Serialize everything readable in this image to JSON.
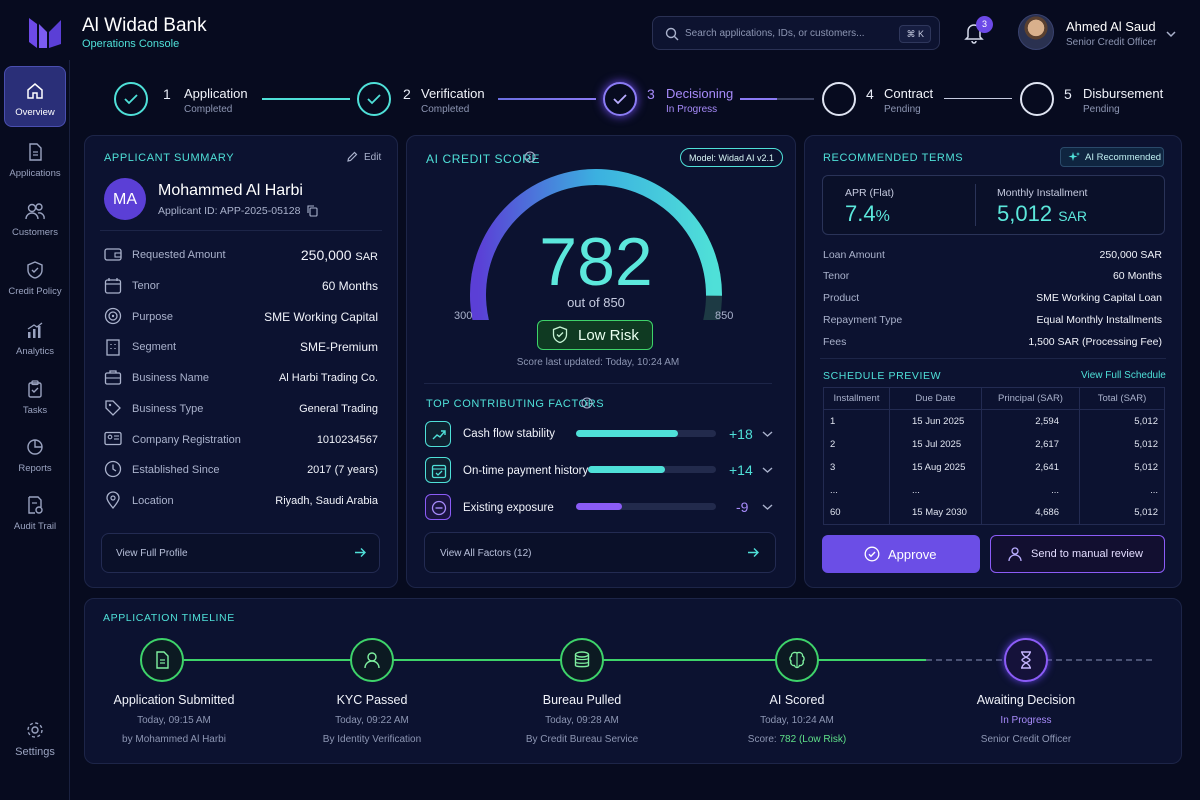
{
  "brand": {
    "name": "Al Widad Bank",
    "subtitle": "Operations Console"
  },
  "search": {
    "placeholder": "Search applications, IDs, or customers...",
    "shortcut": "⌘ K"
  },
  "notifications": {
    "count": "3"
  },
  "user": {
    "name": "Ahmed Al Saud",
    "role": "Senior Credit Officer"
  },
  "sidebar": {
    "items": [
      {
        "label": "Overview",
        "icon": "home-icon"
      },
      {
        "label": "Applications",
        "icon": "document-icon"
      },
      {
        "label": "Customers",
        "icon": "users-icon"
      },
      {
        "label": "Credit Policy",
        "icon": "shield-icon"
      },
      {
        "label": "Analytics",
        "icon": "chart-icon"
      },
      {
        "label": "Tasks",
        "icon": "clipboard-icon"
      },
      {
        "label": "Reports",
        "icon": "pie-icon"
      },
      {
        "label": "Audit Trail",
        "icon": "audit-icon"
      }
    ],
    "settings": "Settings"
  },
  "stepper": [
    {
      "num": "1",
      "label": "Application",
      "status": "Completed"
    },
    {
      "num": "2",
      "label": "Verification",
      "status": "Completed"
    },
    {
      "num": "3",
      "label": "Decisioning",
      "status": "In Progress"
    },
    {
      "num": "4",
      "label": "Contract",
      "status": "Pending"
    },
    {
      "num": "5",
      "label": "Disbursement",
      "status": "Pending"
    }
  ],
  "applicant": {
    "title": "APPLICANT SUMMARY",
    "edit": "Edit",
    "initials": "MA",
    "name": "Mohammed Al Harbi",
    "id": "Applicant ID: APP-2025-05128",
    "rows": [
      {
        "label": "Requested Amount",
        "value": "250,000",
        "unit": "SAR"
      },
      {
        "label": "Tenor",
        "value": "60 Months"
      },
      {
        "label": "Purpose",
        "value": "SME Working Capital"
      },
      {
        "label": "Segment",
        "value": "SME-Premium"
      },
      {
        "label": "Business Name",
        "value": "Al Harbi Trading Co."
      },
      {
        "label": "Business Type",
        "value": "General Trading"
      },
      {
        "label": "Company Registration",
        "value": "1010234567"
      },
      {
        "label": "Established Since",
        "value": "2017 (7 years)"
      },
      {
        "label": "Location",
        "value": "Riyadh, Saudi Arabia"
      }
    ],
    "view_profile": "View Full Profile"
  },
  "score": {
    "title": "AI CREDIT SCORE",
    "model": "Model: Widad AI v2.1",
    "value": "782",
    "out_of": "out of 850",
    "min": "300",
    "max": "850",
    "score_num": 782,
    "min_num": 300,
    "max_num": 850,
    "risk": "Low Risk",
    "updated": "Score last updated: Today, 10:24 AM"
  },
  "factors": {
    "title": "TOP CONTRIBUTING FACTORS",
    "items": [
      {
        "label": "Cash flow stability",
        "value": "+18",
        "level": 0.73,
        "color": "#4fe0d8"
      },
      {
        "label": "On-time payment history",
        "value": "+14",
        "level": 0.6,
        "color": "#4fe0d8"
      },
      {
        "label": "Existing exposure",
        "value": "-9",
        "level": 0.33,
        "color": "#8b5cf6"
      }
    ],
    "view_all": "View All Factors (12)"
  },
  "terms": {
    "title": "RECOMMENDED TERMS",
    "ai_badge": "AI Recommended",
    "apr_label": "APR (Flat)",
    "apr_value": "7.4",
    "apr_unit": "%",
    "installment_label": "Monthly Installment",
    "installment_value": "5,012",
    "installment_unit": "SAR",
    "rows": [
      {
        "label": "Loan Amount",
        "value": "250,000 SAR"
      },
      {
        "label": "Tenor",
        "value": "60 Months"
      },
      {
        "label": "Product",
        "value": "SME Working Capital Loan"
      },
      {
        "label": "Repayment Type",
        "value": "Equal Monthly Installments"
      },
      {
        "label": "Fees",
        "value": "1,500 SAR (Processing Fee)"
      }
    ]
  },
  "schedule": {
    "title": "SCHEDULE PREVIEW",
    "view_full": "View Full Schedule",
    "headers": [
      "Installment",
      "Due Date",
      "Principal (SAR)",
      "Total (SAR)"
    ],
    "rows": [
      [
        "1",
        "15 Jun 2025",
        "2,594",
        "5,012"
      ],
      [
        "2",
        "15 Jul 2025",
        "2,617",
        "5,012"
      ],
      [
        "3",
        "15 Aug 2025",
        "2,641",
        "5,012"
      ],
      [
        "...",
        "...",
        "...",
        "..."
      ],
      [
        "60",
        "15 May 2030",
        "4,686",
        "5,012"
      ]
    ]
  },
  "actions": {
    "approve": "Approve",
    "manual_review": "Send to manual review"
  },
  "timeline": {
    "title": "APPLICATION TIMELINE",
    "events": [
      {
        "title": "Application Submitted",
        "time": "Today, 09:15 AM",
        "by": "by Mohammed Al Harbi"
      },
      {
        "title": "KYC Passed",
        "time": "Today, 09:22 AM",
        "by": "By Identity Verification"
      },
      {
        "title": "Bureau Pulled",
        "time": "Today, 09:28 AM",
        "by": "By Credit Bureau Service"
      },
      {
        "title": "AI Scored",
        "time": "Today, 10:24 AM",
        "by_prefix": "Score:",
        "by_highlight": "782 (Low Risk)"
      },
      {
        "title": "Awaiting Decision",
        "time": "In Progress",
        "by": "Senior Credit Officer"
      }
    ]
  },
  "colors": {
    "accent": "#4fe0d8",
    "brand": "#6d4ae8",
    "success": "#3ed36a",
    "background": "#070b1f"
  }
}
